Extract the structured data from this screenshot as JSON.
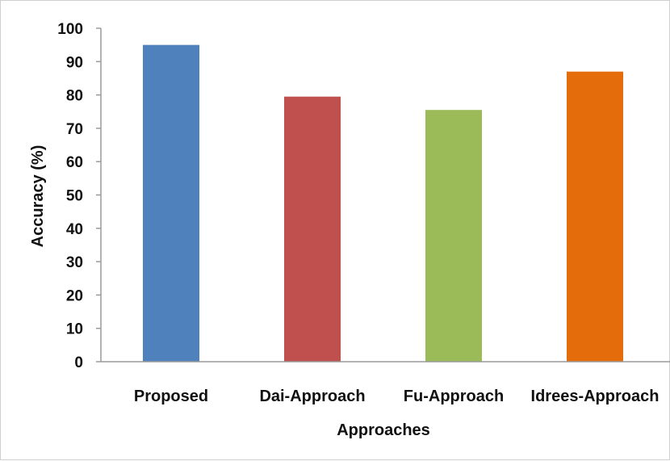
{
  "chart_data": {
    "type": "bar",
    "categories": [
      "Proposed",
      "Dai-Approach",
      "Fu-Approach",
      "Idrees-Approach"
    ],
    "values": [
      95,
      79.5,
      75.5,
      87
    ],
    "colors": [
      "#4f81bd",
      "#c0504d",
      "#9bbb59",
      "#e46c0a"
    ],
    "xlabel": "Approaches",
    "ylabel": "Accuracy (%)",
    "ylim": [
      0,
      100
    ],
    "yticks": [
      0,
      10,
      20,
      30,
      40,
      50,
      60,
      70,
      80,
      90,
      100
    ],
    "grid": false,
    "legend": "none"
  }
}
